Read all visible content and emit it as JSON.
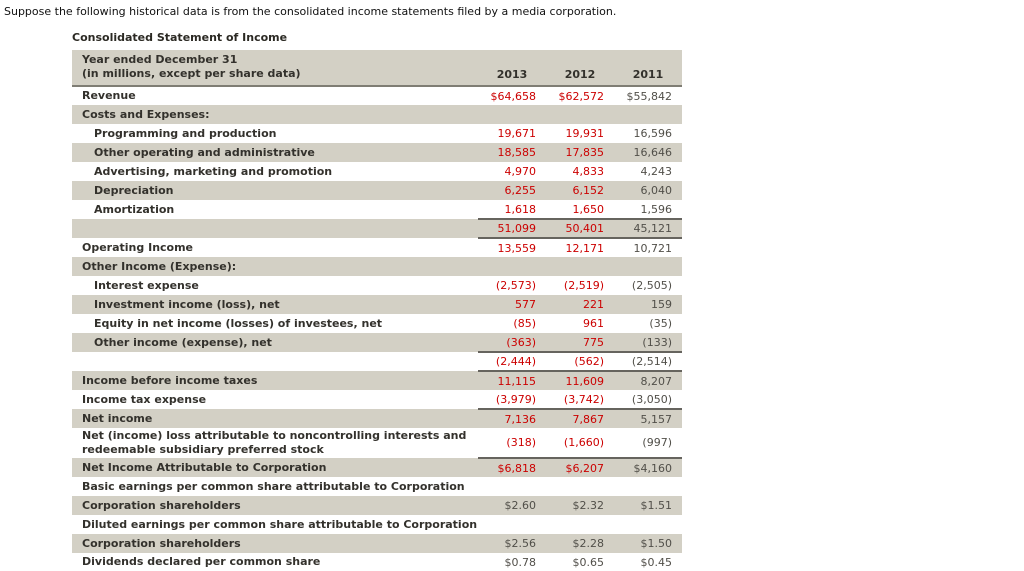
{
  "intro": "Suppose the following historical data is from the consolidated income statements filed by a media corporation.",
  "colors": {
    "negative_and_recent_years_red": "#cc0000",
    "row_shade_gray": "#d3d0c5",
    "rule_dark": "#66645e",
    "text_dark": "#33312c"
  },
  "table": {
    "title": "Consolidated Statement of Income",
    "header": {
      "label_line1": "Year ended December 31",
      "label_line2": "(in millions, except per share data)",
      "columns": [
        "2013",
        "2012",
        "2011"
      ]
    },
    "rows": [
      {
        "label": "Revenue",
        "indent": false,
        "shade": false,
        "red": true,
        "values": [
          "$64,658",
          "$62,572",
          "$55,842"
        ]
      },
      {
        "label": "Costs and Expenses:",
        "indent": false,
        "shade": true,
        "red": false,
        "values": []
      },
      {
        "label": "Programming and production",
        "indent": true,
        "shade": false,
        "red": true,
        "values": [
          "19,671",
          "19,931",
          "16,596"
        ]
      },
      {
        "label": "Other operating and administrative",
        "indent": true,
        "shade": true,
        "red": true,
        "values": [
          "18,585",
          "17,835",
          "16,646"
        ]
      },
      {
        "label": "Advertising, marketing and promotion",
        "indent": true,
        "shade": false,
        "red": true,
        "values": [
          "4,970",
          "4,833",
          "4,243"
        ]
      },
      {
        "label": "Depreciation",
        "indent": true,
        "shade": true,
        "red": true,
        "values": [
          "6,255",
          "6,152",
          "6,040"
        ]
      },
      {
        "label": "Amortization",
        "indent": true,
        "shade": false,
        "red": true,
        "values": [
          "1,618",
          "1,650",
          "1,596"
        ]
      },
      {
        "label": "",
        "indent": false,
        "shade": true,
        "red": true,
        "line_top": true,
        "line_bottom": true,
        "values": [
          "51,099",
          "50,401",
          "45,121"
        ]
      },
      {
        "label": "Operating Income",
        "indent": false,
        "shade": false,
        "red": true,
        "values": [
          "13,559",
          "12,171",
          "10,721"
        ]
      },
      {
        "label": "Other Income (Expense):",
        "indent": false,
        "shade": true,
        "red": false,
        "values": []
      },
      {
        "label": "Interest expense",
        "indent": true,
        "shade": false,
        "red": true,
        "values": [
          "(2,573)",
          "(2,519)",
          "(2,505)"
        ]
      },
      {
        "label": "Investment income (loss), net",
        "indent": true,
        "shade": true,
        "red": true,
        "values": [
          "577",
          "221",
          "159"
        ]
      },
      {
        "label": "Equity in net income (losses) of investees, net",
        "indent": true,
        "shade": false,
        "red": true,
        "values": [
          "(85)",
          "961",
          "(35)"
        ]
      },
      {
        "label": "Other income (expense), net",
        "indent": true,
        "shade": true,
        "red": true,
        "values": [
          "(363)",
          "775",
          "(133)"
        ]
      },
      {
        "label": "",
        "indent": false,
        "shade": false,
        "red": true,
        "line_top": true,
        "line_bottom": true,
        "values": [
          "(2,444)",
          "(562)",
          "(2,514)"
        ]
      },
      {
        "label": "Income before income taxes",
        "indent": false,
        "shade": true,
        "red": true,
        "values": [
          "11,115",
          "11,609",
          "8,207"
        ]
      },
      {
        "label": "Income tax expense",
        "indent": false,
        "shade": false,
        "red": true,
        "values": [
          "(3,979)",
          "(3,742)",
          "(3,050)"
        ]
      },
      {
        "label": "Net income",
        "indent": false,
        "shade": true,
        "red": true,
        "line_top": true,
        "values": [
          "7,136",
          "7,867",
          "5,157"
        ]
      },
      {
        "label": "Net (income) loss attributable to noncontrolling interests and redeemable subsidiary preferred stock",
        "indent": false,
        "shade": false,
        "red": true,
        "values": [
          "(318)",
          "(1,660)",
          "(997)"
        ]
      },
      {
        "label": "Net Income Attributable to Corporation",
        "indent": false,
        "shade": true,
        "red": true,
        "line_top": true,
        "values": [
          "$6,818",
          "$6,207",
          "$4,160"
        ]
      },
      {
        "label": "Basic earnings per common share attributable to Corporation",
        "indent": false,
        "shade": false,
        "red": false,
        "values": []
      },
      {
        "label": "Corporation shareholders",
        "indent": false,
        "shade": true,
        "red": false,
        "values": [
          "$2.60",
          "$2.32",
          "$1.51"
        ]
      },
      {
        "label": "Diluted earnings per common share attributable to Corporation",
        "indent": false,
        "shade": false,
        "red": false,
        "values": []
      },
      {
        "label": "Corporation shareholders",
        "indent": false,
        "shade": true,
        "red": false,
        "values": [
          "$2.56",
          "$2.28",
          "$1.50"
        ]
      },
      {
        "label": "Dividends declared per common share",
        "indent": false,
        "shade": false,
        "red": false,
        "values": [
          "$0.78",
          "$0.65",
          "$0.45"
        ]
      }
    ]
  }
}
